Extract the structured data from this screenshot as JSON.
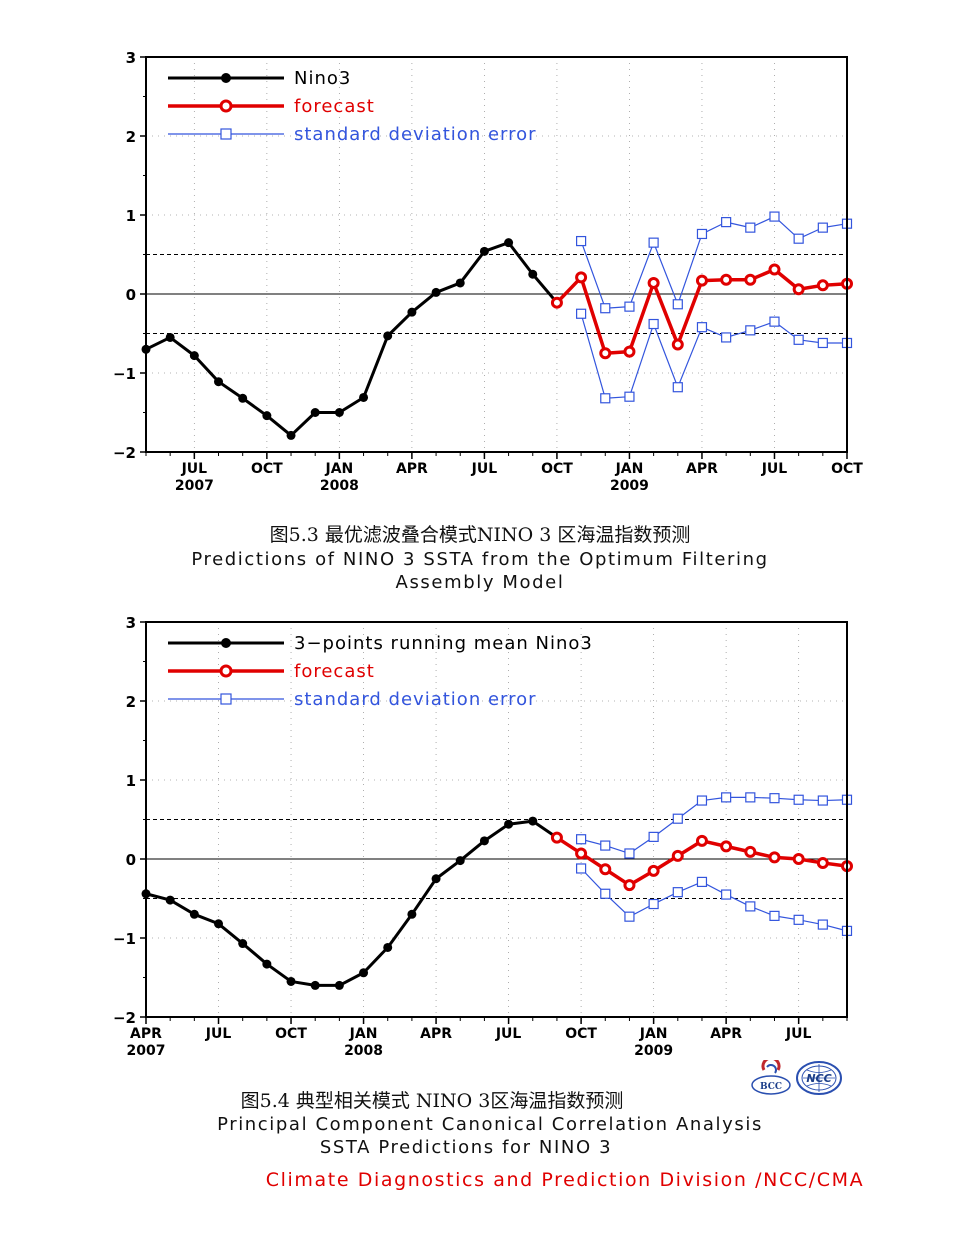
{
  "colors": {
    "obs": "#000000",
    "forecast": "#e00000",
    "sd": "#3355dd",
    "footer": "#e00000"
  },
  "captions": {
    "fig1_cn": "图5.3  最优滤波叠合模式NINO 3 区海温指数预测",
    "fig1_en1": "Predictions of NINO 3 SSTA from the Optimum Filtering",
    "fig1_en2": "Assembly Model",
    "fig2_cn": "图5.4  典型相关模式 NINO 3区海温指数预测",
    "fig2_en1": "Principal Component Canonical Correlation Analysis",
    "fig2_en2": "SSTA Predictions for NINO 3"
  },
  "footer": "Climate Diagnostics and Prediction Division /NCC/CMA",
  "logos": {
    "left": "BCC",
    "right": "NCC"
  },
  "chart_data": [
    {
      "type": "line",
      "title": "",
      "xlabel": "",
      "ylabel": "",
      "ylim": [
        -2,
        3
      ],
      "yticks": [
        "3",
        "2",
        "1",
        "0",
        "−1",
        "−2"
      ],
      "xlim": [
        "2007-05",
        "2009-10"
      ],
      "xticks": [
        {
          "month": "JUL",
          "year": "2007"
        },
        {
          "month": "OCT",
          "year": ""
        },
        {
          "month": "JAN",
          "year": "2008"
        },
        {
          "month": "APR",
          "year": ""
        },
        {
          "month": "JUL",
          "year": ""
        },
        {
          "month": "OCT",
          "year": ""
        },
        {
          "month": "JAN",
          "year": "2009"
        },
        {
          "month": "APR",
          "year": ""
        },
        {
          "month": "JUL",
          "year": ""
        },
        {
          "month": "OCT",
          "year": ""
        }
      ],
      "reference_lines": [
        0.5,
        -0.5
      ],
      "legend": [
        "Nino3",
        "forecast",
        "standard  deviation  error"
      ],
      "series": [
        {
          "name": "Nino3",
          "x": [
            "2007-05",
            "2007-06",
            "2007-07",
            "2007-08",
            "2007-09",
            "2007-10",
            "2007-11",
            "2007-12",
            "2008-01",
            "2008-02",
            "2008-03",
            "2008-04",
            "2008-05",
            "2008-06",
            "2008-07",
            "2008-08",
            "2008-09",
            "2008-10"
          ],
          "values": [
            -0.7,
            -0.55,
            -0.78,
            -1.11,
            -1.32,
            -1.54,
            -1.79,
            -1.5,
            -1.5,
            -1.31,
            -0.53,
            -0.23,
            0.02,
            0.14,
            0.54,
            0.65,
            0.25,
            -0.11
          ]
        },
        {
          "name": "forecast",
          "x": [
            "2008-10",
            "2008-11",
            "2008-12",
            "2009-01",
            "2009-02",
            "2009-03",
            "2009-04",
            "2009-05",
            "2009-06",
            "2009-07",
            "2009-08",
            "2009-09",
            "2009-10"
          ],
          "values": [
            -0.11,
            0.21,
            -0.75,
            -0.73,
            0.14,
            -0.64,
            0.17,
            0.18,
            0.18,
            0.31,
            0.06,
            0.11,
            0.13
          ]
        },
        {
          "name": "standard  deviation  error",
          "x": [
            "2008-11",
            "2008-12",
            "2009-01",
            "2009-02",
            "2009-03",
            "2009-04",
            "2009-05",
            "2009-06",
            "2009-07",
            "2009-08",
            "2009-09",
            "2009-10"
          ],
          "values": [
            0.67,
            -0.18,
            -0.16,
            0.65,
            -0.13,
            0.76,
            0.91,
            0.84,
            0.98,
            0.7,
            0.84,
            0.89
          ]
        },
        {
          "name": "standard  deviation  error",
          "x": [
            "2008-11",
            "2008-12",
            "2009-01",
            "2009-02",
            "2009-03",
            "2009-04",
            "2009-05",
            "2009-06",
            "2009-07",
            "2009-08",
            "2009-09",
            "2009-10"
          ],
          "values": [
            -0.25,
            -1.32,
            -1.3,
            -0.38,
            -1.18,
            -0.42,
            -0.55,
            -0.46,
            -0.35,
            -0.58,
            -0.62,
            -0.62
          ]
        }
      ]
    },
    {
      "type": "line",
      "title": "",
      "xlabel": "",
      "ylabel": "",
      "ylim": [
        -2,
        3
      ],
      "yticks": [
        "3",
        "2",
        "1",
        "0",
        "−1",
        "−2"
      ],
      "xlim": [
        "2007-04",
        "2009-09"
      ],
      "xticks": [
        {
          "month": "APR",
          "year": "2007"
        },
        {
          "month": "JUL",
          "year": ""
        },
        {
          "month": "OCT",
          "year": ""
        },
        {
          "month": "JAN",
          "year": "2008"
        },
        {
          "month": "APR",
          "year": ""
        },
        {
          "month": "JUL",
          "year": ""
        },
        {
          "month": "OCT",
          "year": ""
        },
        {
          "month": "JAN",
          "year": "2009"
        },
        {
          "month": "APR",
          "year": ""
        },
        {
          "month": "JUL",
          "year": ""
        }
      ],
      "reference_lines": [
        0.5,
        -0.5
      ],
      "legend": [
        "3−points  running  mean  Nino3",
        "forecast",
        "standard  deviation  error"
      ],
      "series": [
        {
          "name": "3−points  running  mean  Nino3",
          "x": [
            "2007-04",
            "2007-05",
            "2007-06",
            "2007-07",
            "2007-08",
            "2007-09",
            "2007-10",
            "2007-11",
            "2007-12",
            "2008-01",
            "2008-02",
            "2008-03",
            "2008-04",
            "2008-05",
            "2008-06",
            "2008-07",
            "2008-08",
            "2008-09"
          ],
          "values": [
            -0.44,
            -0.52,
            -0.7,
            -0.82,
            -1.07,
            -1.33,
            -1.55,
            -1.6,
            -1.6,
            -1.44,
            -1.12,
            -0.7,
            -0.25,
            -0.02,
            0.23,
            0.44,
            0.48,
            0.27
          ]
        },
        {
          "name": "forecast",
          "x": [
            "2008-09",
            "2008-10",
            "2008-11",
            "2008-12",
            "2009-01",
            "2009-02",
            "2009-03",
            "2009-04",
            "2009-05",
            "2009-06",
            "2009-07",
            "2009-08",
            "2009-09"
          ],
          "values": [
            0.27,
            0.07,
            -0.13,
            -0.33,
            -0.15,
            0.04,
            0.23,
            0.16,
            0.09,
            0.02,
            0.0,
            -0.05,
            -0.09
          ]
        },
        {
          "name": "standard  deviation  error",
          "x": [
            "2008-10",
            "2008-11",
            "2008-12",
            "2009-01",
            "2009-02",
            "2009-03",
            "2009-04",
            "2009-05",
            "2009-06",
            "2009-07",
            "2009-08",
            "2009-09"
          ],
          "values": [
            0.25,
            0.17,
            0.07,
            0.28,
            0.51,
            0.74,
            0.78,
            0.78,
            0.77,
            0.75,
            0.74,
            0.75
          ]
        },
        {
          "name": "standard  deviation  error",
          "x": [
            "2008-10",
            "2008-11",
            "2008-12",
            "2009-01",
            "2009-02",
            "2009-03",
            "2009-04",
            "2009-05",
            "2009-06",
            "2009-07",
            "2009-08",
            "2009-09"
          ],
          "values": [
            -0.12,
            -0.44,
            -0.73,
            -0.57,
            -0.42,
            -0.29,
            -0.45,
            -0.6,
            -0.72,
            -0.77,
            -0.83,
            -0.91
          ]
        }
      ]
    }
  ]
}
